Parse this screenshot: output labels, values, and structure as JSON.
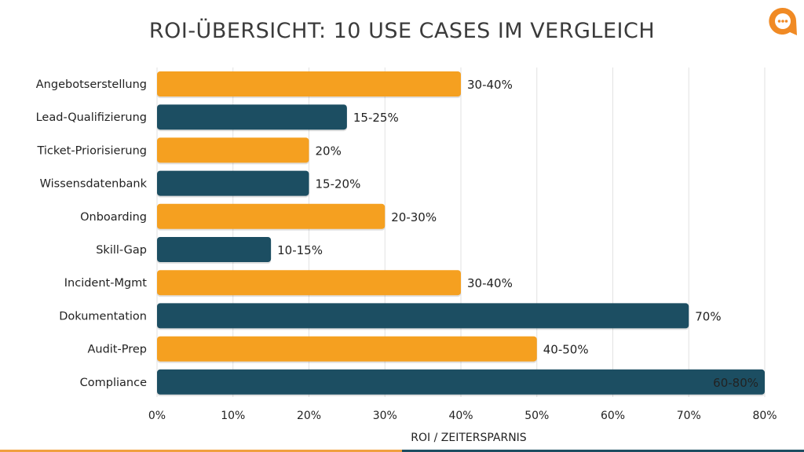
{
  "chart_data": {
    "type": "bar",
    "orientation": "horizontal",
    "title": "ROI-ÜBERSICHT: 10 USE CASES IM VERGLEICH",
    "xlabel": "ROI / ZEITERSPARNIS",
    "ylabel": "",
    "xlim": [
      0,
      80
    ],
    "x_ticks": [
      "0%",
      "10%",
      "20%",
      "30%",
      "40%",
      "50%",
      "60%",
      "70%",
      "80%"
    ],
    "grid": "vertical",
    "categories": [
      "Angebotserstellung",
      "Lead-Qualifizierung",
      "Ticket-Priorisierung",
      "Wissensdatenbank",
      "Onboarding",
      "Skill-Gap",
      "Incident-Mgmt",
      "Dokumentation",
      "Audit-Prep",
      "Compliance"
    ],
    "values": [
      40,
      25,
      20,
      20,
      30,
      15,
      40,
      70,
      50,
      80
    ],
    "data_labels": [
      "30-40%",
      "15-25%",
      "20%",
      "15-20%",
      "20-30%",
      "10-15%",
      "30-40%",
      "70%",
      "40-50%",
      "60-80%"
    ],
    "colors": [
      "#F5A020",
      "#1C4E62",
      "#F5A020",
      "#1C4E62",
      "#F5A020",
      "#1C4E62",
      "#F5A020",
      "#1C4E62",
      "#F5A020",
      "#1C4E62"
    ]
  },
  "brand": {
    "orange": "#F08A24",
    "teal": "#1C4E62",
    "logo_icon": "chat-bubble-logo"
  }
}
